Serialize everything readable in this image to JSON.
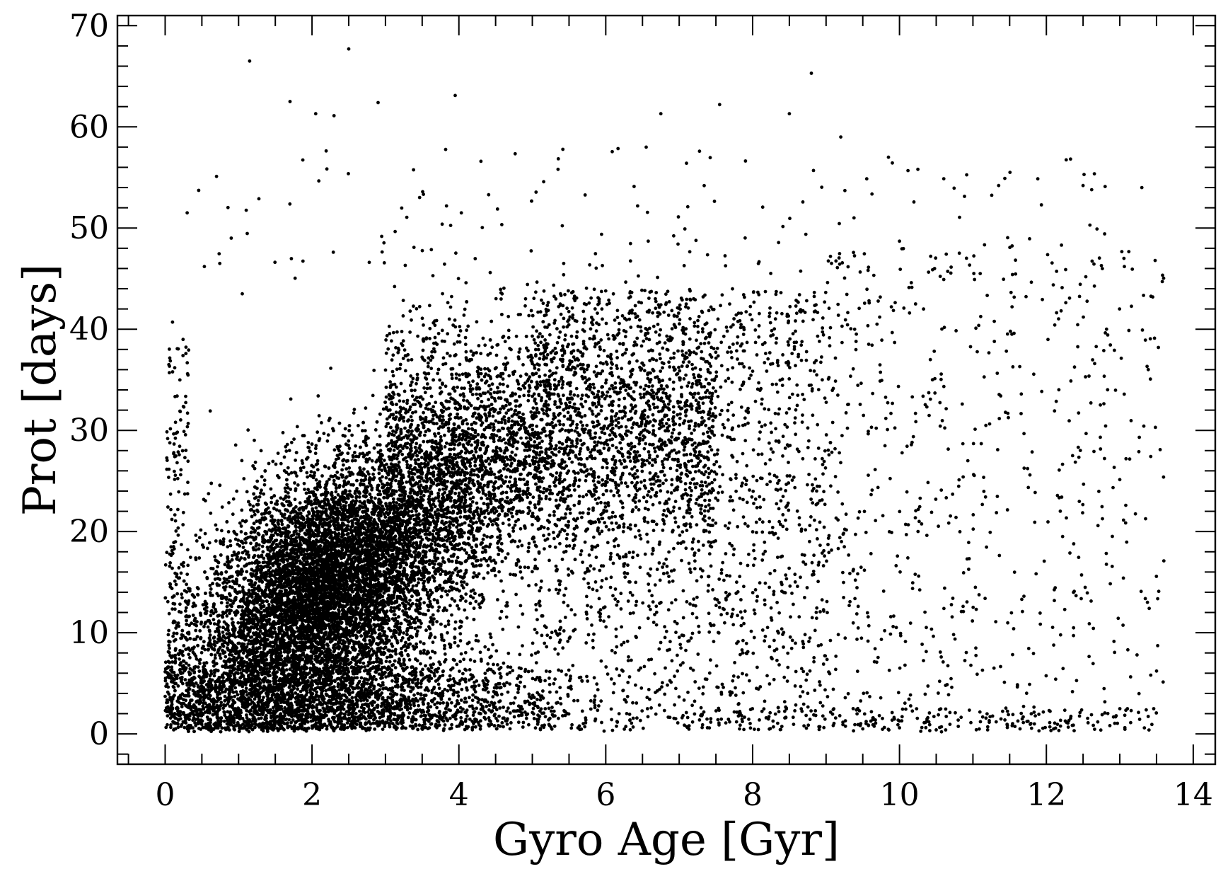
{
  "chart_data": {
    "type": "scatter",
    "title": "",
    "xlabel": "Gyro Age [Gyr]",
    "ylabel": "Prot [days]",
    "xlim": [
      -0.65,
      14.3
    ],
    "ylim": [
      -3,
      71
    ],
    "x_ticks": [
      0,
      2,
      4,
      6,
      8,
      10,
      12,
      14
    ],
    "y_ticks": [
      0,
      10,
      20,
      30,
      40,
      50,
      60,
      70
    ],
    "x_minor_step": 0.5,
    "y_minor_step": 2,
    "grid": false,
    "legend": "none",
    "marker_color": "#000000",
    "axis_color": "#000000",
    "description_of_density": "dense cloud of roughly 20000 stars concentrated at ages 1-4 Gyr and periods 5-30 days, spreading to ~14 Gyr and ~68 days",
    "series": [
      {
        "points_note": "representative sampled points (x = Gyro Age in Gyr, y = Prot in days)",
        "x": [
          1.15,
          2.5,
          1.7,
          2.9,
          3.95,
          2.05,
          2.3,
          8.8,
          7.55,
          6.75,
          8.5,
          9.2,
          6.55,
          0.7,
          5.35,
          4.3,
          7.1,
          11.35,
          12.5,
          13.3,
          12.8,
          10.25,
          9.85,
          12.25,
          13.4,
          13.55,
          13.6,
          11.2,
          11.9,
          12.1,
          10.0,
          10.5,
          9.5,
          0.05,
          0.1,
          0.3,
          1.05,
          0.9
        ],
        "y": [
          66.5,
          67.7,
          62.5,
          62.4,
          63.1,
          61.3,
          61.1,
          65.3,
          62.2,
          61.3,
          61.3,
          59.0,
          58.0,
          55.1,
          55.8,
          56.6,
          56.4,
          54.2,
          54.2,
          54.0,
          54.1,
          55.8,
          57.0,
          12.3,
          12.4,
          28.1,
          17.1,
          0.4,
          0.3,
          0.5,
          0.6,
          0.4,
          0.5,
          36.5,
          40.7,
          51.5,
          43.5,
          49.0
        ]
      }
    ]
  },
  "meta_render": {
    "tick_format": "integer"
  }
}
